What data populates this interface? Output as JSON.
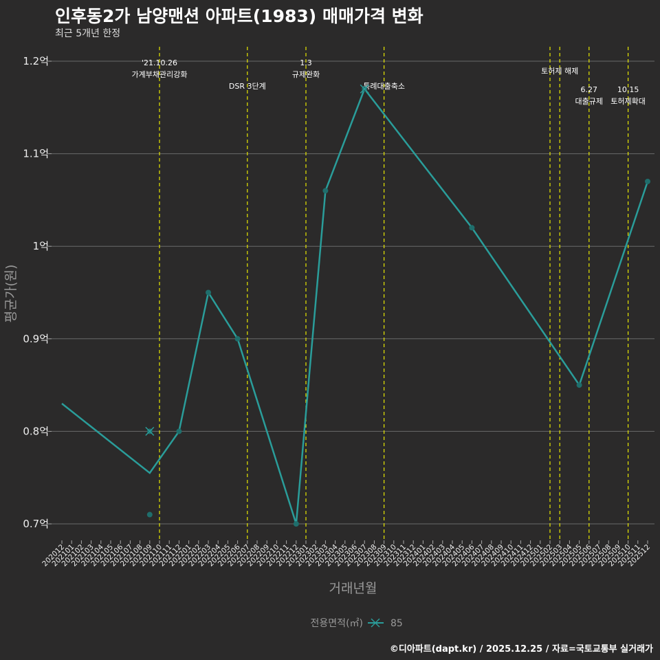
{
  "header": {
    "title": "인후동2가 남양맨션 아파트(1983) 매매가격 변화",
    "subtitle": "최근 5개년 한정"
  },
  "caption": "©디아파트(dapt.kr) / 2025.12.25 / 자료=국토교통부 실거래가",
  "chart_data": {
    "type": "line",
    "title": "인후동2가 남양맨션 아파트(1983) 매매가격 변화",
    "xlabel": "거래년월",
    "ylabel": "평균가(원)",
    "ylim": [
      0.68,
      1.21
    ],
    "yticks": [
      0.7,
      0.8,
      0.9,
      1.0,
      1.1,
      1.2
    ],
    "ytick_labels": [
      "0.7억",
      "0.8억",
      "0.9억",
      "1억",
      "1.1억",
      "1.2억"
    ],
    "x_categories": [
      "202012",
      "202101",
      "202102",
      "202103",
      "202104",
      "202105",
      "202106",
      "202107",
      "202108",
      "202109",
      "202110",
      "202111",
      "202112",
      "202201",
      "202202",
      "202203",
      "202204",
      "202205",
      "202206",
      "202207",
      "202208",
      "202209",
      "202210",
      "202211",
      "202212",
      "202301",
      "202302",
      "202303",
      "202304",
      "202305",
      "202306",
      "202307",
      "202308",
      "202309",
      "202310",
      "202311",
      "202312",
      "202401",
      "202402",
      "202403",
      "202404",
      "202405",
      "202406",
      "202407",
      "202408",
      "202409",
      "202410",
      "202411",
      "202412",
      "202501",
      "202502",
      "202503",
      "202504",
      "202505",
      "202506",
      "202507",
      "202508",
      "202509",
      "202510",
      "202511",
      "202512"
    ],
    "legend": {
      "title": "전용면적(㎡)",
      "entries": [
        "85"
      ],
      "placement": "bottom"
    },
    "series": [
      {
        "name": "85",
        "color": "#2a9d9a",
        "line": [
          {
            "x": "202012",
            "y": 0.83
          },
          {
            "x": "202109",
            "y": 0.755
          },
          {
            "x": "202112",
            "y": 0.8
          },
          {
            "x": "202203",
            "y": 0.95
          },
          {
            "x": "202206",
            "y": 0.9
          },
          {
            "x": "202212",
            "y": 0.7
          },
          {
            "x": "202303",
            "y": 1.06
          },
          {
            "x": "202307",
            "y": 1.17
          },
          {
            "x": "202406",
            "y": 1.02
          },
          {
            "x": "202505",
            "y": 0.85
          },
          {
            "x": "202512",
            "y": 1.07
          }
        ],
        "points": [
          {
            "x": "202109",
            "y": 0.8,
            "cross": true
          },
          {
            "x": "202109",
            "y": 0.71
          },
          {
            "x": "202112",
            "y": 0.8
          },
          {
            "x": "202203",
            "y": 0.95
          },
          {
            "x": "202206",
            "y": 0.9
          },
          {
            "x": "202212",
            "y": 0.7
          },
          {
            "x": "202303",
            "y": 1.06
          },
          {
            "x": "202307",
            "y": 1.17,
            "cross": true
          },
          {
            "x": "202406",
            "y": 1.02
          },
          {
            "x": "202505",
            "y": 0.85
          },
          {
            "x": "202512",
            "y": 1.07
          }
        ]
      }
    ],
    "vlines_color": "#e8e800",
    "events": [
      {
        "x": "202110",
        "lines": [
          "'21.10.26",
          "가계부채관리강화"
        ],
        "row": 0
      },
      {
        "x": "202207",
        "lines": [
          "DSR 3단계"
        ],
        "row": 2
      },
      {
        "x": "202301",
        "lines": [
          "1.3",
          "규제완화"
        ],
        "row": 0
      },
      {
        "x": "202309",
        "lines": [
          "특례대출축소"
        ],
        "row": 2
      },
      {
        "x": "202502",
        "lines": [],
        "row": 0
      },
      {
        "x": "202503",
        "lines": [
          "토허제 해제"
        ],
        "row": 0.7
      },
      {
        "x": "202506",
        "lines": [
          "6.27",
          "대출규제"
        ],
        "row": 2.3
      },
      {
        "x": "202510",
        "lines": [
          "10.15",
          "토허제확대"
        ],
        "row": 2.3
      }
    ]
  }
}
